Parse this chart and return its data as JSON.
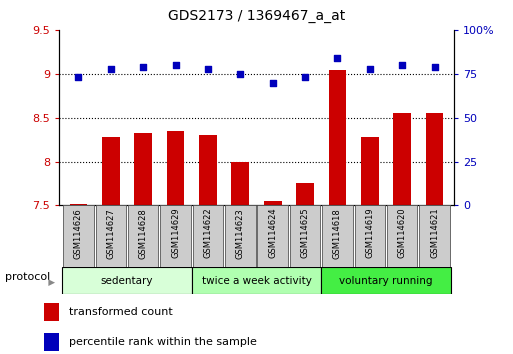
{
  "title": "GDS2173 / 1369467_a_at",
  "samples": [
    "GSM114626",
    "GSM114627",
    "GSM114628",
    "GSM114629",
    "GSM114622",
    "GSM114623",
    "GSM114624",
    "GSM114625",
    "GSM114618",
    "GSM114619",
    "GSM114620",
    "GSM114621"
  ],
  "bar_values": [
    7.52,
    8.28,
    8.32,
    8.35,
    8.3,
    8.0,
    7.55,
    7.75,
    9.05,
    8.28,
    8.55,
    8.55
  ],
  "dot_values": [
    73,
    78,
    79,
    80,
    78,
    75,
    70,
    73,
    84,
    78,
    80,
    79
  ],
  "bar_color": "#cc0000",
  "dot_color": "#0000bb",
  "ylim_left": [
    7.5,
    9.5
  ],
  "ylim_right": [
    0,
    100
  ],
  "yticks_left": [
    7.5,
    8.0,
    8.5,
    9.0,
    9.5
  ],
  "yticks_right": [
    0,
    25,
    50,
    75,
    100
  ],
  "ytick_labels_left": [
    "7.5",
    "8",
    "8.5",
    "9",
    "9.5"
  ],
  "ytick_labels_right": [
    "0",
    "25",
    "50",
    "75",
    "100%"
  ],
  "groups": [
    {
      "label": "sedentary",
      "start": 0,
      "end": 4,
      "color": "#d8ffd8"
    },
    {
      "label": "twice a week activity",
      "start": 4,
      "end": 8,
      "color": "#b0ffb0"
    },
    {
      "label": "voluntary running",
      "start": 8,
      "end": 12,
      "color": "#44ee44"
    }
  ],
  "protocol_label": "protocol",
  "legend_bar_label": "transformed count",
  "legend_dot_label": "percentile rank within the sample",
  "bar_bottom": 7.5,
  "grid_values": [
    8.0,
    8.5,
    9.0
  ],
  "background_color": "#ffffff",
  "plot_bg_color": "#ffffff",
  "label_box_color": "#cccccc",
  "bar_width": 0.55
}
